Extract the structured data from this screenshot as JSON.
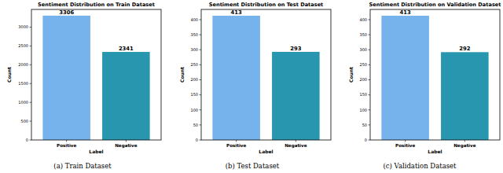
{
  "chart_data": [
    {
      "type": "bar",
      "title": "Sentiment Distribution on Train Dataset",
      "x_label": "Label",
      "y_label": "Count",
      "caption": "(a) Train Dataset",
      "categories": [
        "Positive",
        "Negative"
      ],
      "values": [
        3306,
        2341
      ],
      "colors": [
        "#76b3ec",
        "#2996b0"
      ],
      "ylim": [
        0,
        3471
      ],
      "yticks": [
        0,
        500,
        1000,
        1500,
        2000,
        2500,
        3000
      ],
      "data_labels": true,
      "grid": false
    },
    {
      "type": "bar",
      "title": "Sentiment Distribution on Test Dataset",
      "x_label": "Label",
      "y_label": "Count",
      "caption": "(b) Test Dataset",
      "categories": [
        "Positive",
        "Negative"
      ],
      "values": [
        413,
        293
      ],
      "colors": [
        "#76b3ec",
        "#2996b0"
      ],
      "ylim": [
        0,
        434
      ],
      "yticks": [
        0,
        50,
        100,
        150,
        200,
        250,
        300,
        350,
        400
      ],
      "data_labels": true,
      "grid": false
    },
    {
      "type": "bar",
      "title": "Sentiment Distribution on Validation Dataset",
      "x_label": "Label",
      "y_label": "Count",
      "caption": "(c) Validation Dataset",
      "categories": [
        "Positive",
        "Negative"
      ],
      "values": [
        413,
        292
      ],
      "colors": [
        "#76b3ec",
        "#2996b0"
      ],
      "ylim": [
        0,
        434
      ],
      "yticks": [
        0,
        50,
        100,
        150,
        200,
        250,
        300,
        350,
        400
      ],
      "data_labels": true,
      "grid": false
    }
  ]
}
